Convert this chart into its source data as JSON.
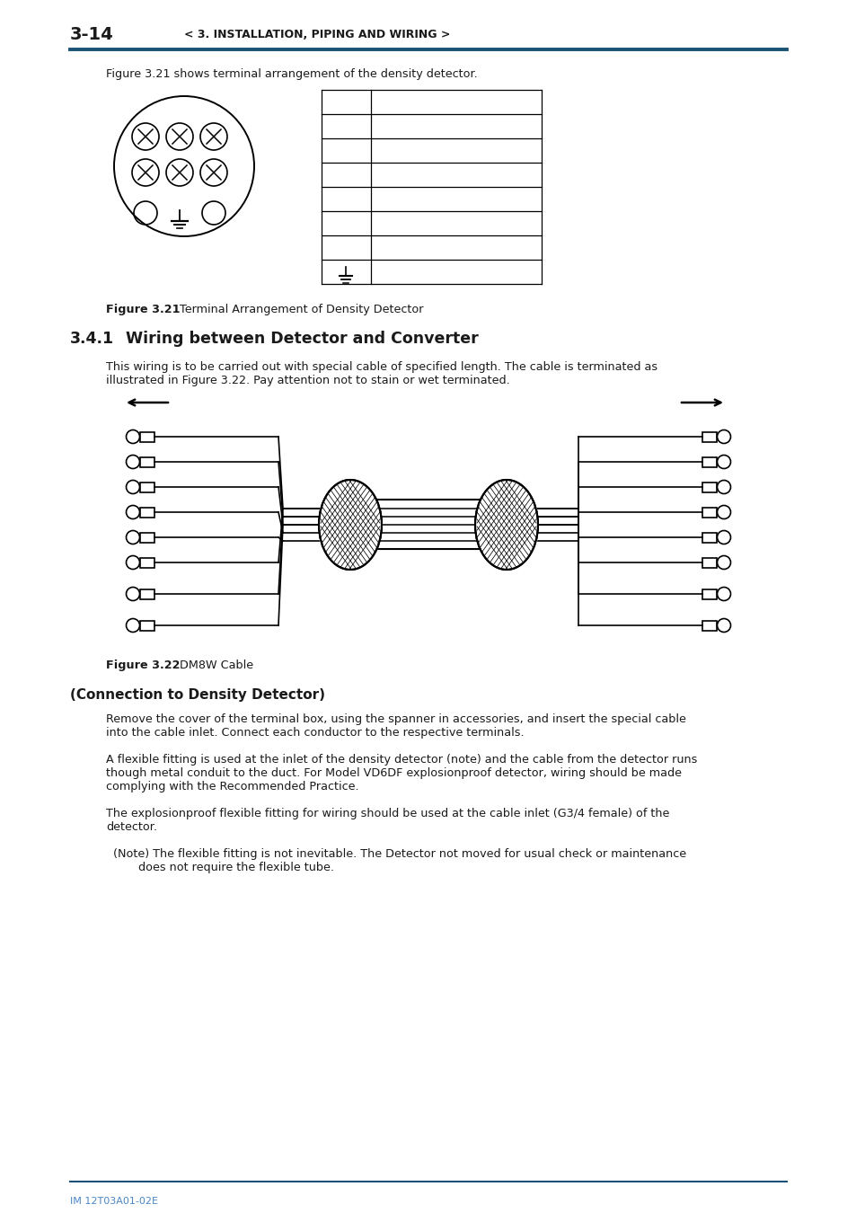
{
  "page_number": "3-14",
  "header_text": "< 3. INSTALLATION, PIPING AND WIRING >",
  "header_line_color": "#1a5276",
  "footer_text": "IM 12T03A01-02E",
  "footer_line_color": "#1a5276",
  "fig321_caption_bold": "Figure 3.21",
  "fig321_caption_rest": "     Terminal Arrangement of Density Detector",
  "fig322_caption_bold": "Figure 3.22",
  "fig322_caption_rest": "     DM8W Cable",
  "section_number": "3.4.1",
  "section_title": "  Wiring between Detector and Converter",
  "para1": "This wiring is to be carried out with special cable of specified length. The cable is terminated as illustrated in Figure 3.22. Pay attention not to stain or wet terminated.",
  "connection_title": "(Connection to Density Detector)",
  "para2": "Remove the cover of the terminal box, using the spanner in accessories, and insert the special cable into the cable inlet. Connect each conductor to the respective terminals.",
  "para3": "A flexible fitting is used at the inlet of the density detector (note) and the cable from the detector runs though metal conduit to the duct. For Model VD6DF explosionproof detector, wiring should be made complying with the Recommended Practice.",
  "para4": "The explosionproof flexible fitting for wiring should be used at the cable inlet (G3/4 female) of the detector.",
  "para5_indent": "  (Note) The flexible fitting is not inevitable. The Detector not moved for usual check or maintenance\n         does not require the flexible tube.",
  "background_color": "#ffffff",
  "text_color": "#1a1a1a",
  "body_font_size": 9.2,
  "header_font_size": 14
}
